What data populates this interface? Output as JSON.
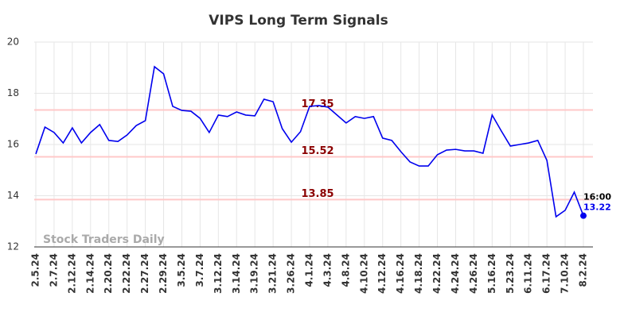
{
  "chart_data": {
    "type": "line",
    "title": "VIPS Long Term Signals",
    "categories": [
      "2.5.24",
      null,
      "2.7.24",
      null,
      "2.12.24",
      null,
      "2.14.24",
      null,
      "2.20.24",
      null,
      "2.22.24",
      null,
      "2.27.24",
      null,
      "2.29.24",
      null,
      "3.5.24",
      null,
      "3.7.24",
      null,
      "3.12.24",
      null,
      "3.14.24",
      null,
      "3.19.24",
      null,
      "3.21.24",
      null,
      "3.26.24",
      null,
      "4.1.24",
      null,
      "4.3.24",
      null,
      "4.8.24",
      null,
      "4.10.24",
      null,
      "4.12.24",
      null,
      "4.16.24",
      null,
      "4.18.24",
      null,
      "4.22.24",
      null,
      "4.24.24",
      null,
      "4.26.24",
      null,
      "5.16.24",
      null,
      "5.23.24",
      null,
      "6.11.24",
      null,
      "6.17.24",
      null,
      "7.10.24",
      null,
      "8.2.24"
    ],
    "values": [
      15.63,
      16.68,
      16.47,
      16.06,
      16.65,
      16.06,
      16.47,
      16.78,
      16.16,
      16.12,
      16.37,
      16.74,
      16.93,
      19.04,
      18.76,
      17.49,
      17.33,
      17.3,
      17.02,
      16.47,
      17.15,
      17.09,
      17.27,
      17.15,
      17.12,
      17.77,
      17.67,
      16.62,
      16.09,
      16.5,
      17.49,
      17.52,
      17.46,
      17.15,
      16.84,
      17.09,
      17.02,
      17.09,
      16.25,
      16.16,
      15.72,
      15.32,
      15.16,
      15.16,
      15.6,
      15.78,
      15.81,
      15.75,
      15.75,
      15.66,
      17.15,
      16.53,
      15.94,
      16.0,
      16.06,
      16.16,
      15.38,
      13.18,
      13.43,
      14.14,
      13.22
    ],
    "color": "#0000ee",
    "ylim": [
      12,
      20
    ],
    "yticks": [
      12,
      14,
      16,
      18,
      20
    ],
    "grid": true,
    "hlines": [
      {
        "value": 17.35,
        "color": "#ffc8c8",
        "label_color": "#8b0000"
      },
      {
        "value": 15.52,
        "color": "#ffc8c8",
        "label_color": "#8b0000"
      },
      {
        "value": 13.85,
        "color": "#ffc8c8",
        "label_color": "#8b0000"
      }
    ],
    "last_time": "16:00",
    "watermark": "Stock Traders Daily"
  }
}
